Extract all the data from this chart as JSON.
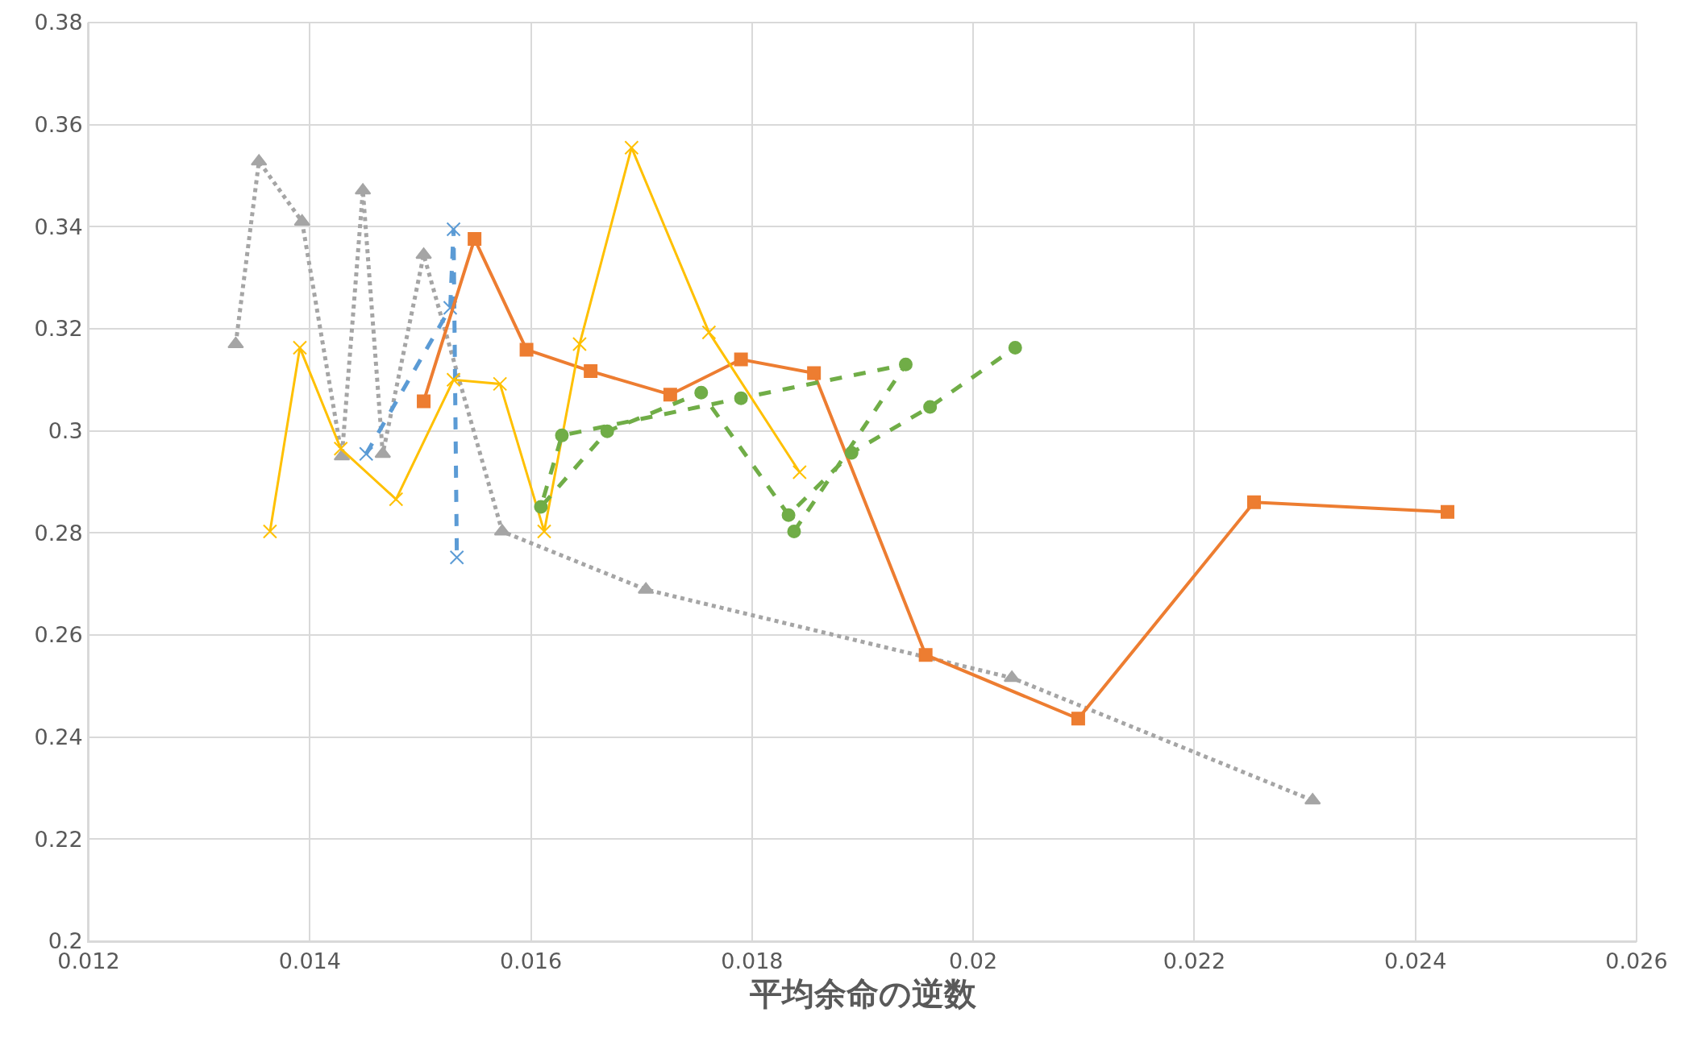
{
  "chart_data": {
    "type": "line",
    "xlabel": "平均余命の逆数",
    "xlim": [
      0.012,
      0.026
    ],
    "xticks": [
      0.012,
      0.014,
      0.016,
      0.018,
      0.02,
      0.022,
      0.024,
      0.026
    ],
    "ylim": [
      0.2,
      0.38
    ],
    "yticks": [
      0.2,
      0.22,
      0.24,
      0.26,
      0.28,
      0.3,
      0.32,
      0.34,
      0.36,
      0.38
    ],
    "grid": true,
    "series": [
      {
        "color": "#a5a5a5",
        "marker": "triangle",
        "line_style": "dotted",
        "x": [
          0.01333,
          0.01354,
          0.01393,
          0.01429,
          0.01448,
          0.01466,
          0.01503,
          0.01574,
          0.01704,
          0.02035,
          0.02307
        ],
        "values": [
          0.317,
          0.3528,
          0.341,
          0.295,
          0.3471,
          0.2955,
          0.3345,
          0.2803,
          0.2689,
          0.2516,
          0.2276
        ]
      },
      {
        "color": "#5b9bd5",
        "marker": "cross",
        "line_style": "dashed",
        "x": [
          0.01451,
          0.01527,
          0.0153,
          0.01533
        ],
        "values": [
          0.2955,
          0.3241,
          0.3395,
          0.2752
        ]
      },
      {
        "color": "#ed7d31",
        "marker": "square",
        "line_style": "solid",
        "x": [
          0.01503,
          0.01549,
          0.01596,
          0.01654,
          0.01726,
          0.0179,
          0.01856,
          0.01957,
          0.02095,
          0.02254,
          0.02429
        ],
        "values": [
          0.3058,
          0.3376,
          0.3159,
          0.3117,
          0.3071,
          0.314,
          0.3113,
          0.2561,
          0.2436,
          0.286,
          0.2841
        ]
      },
      {
        "color": "#ffc000",
        "marker": "cross",
        "line_style": "solid",
        "x": [
          0.01364,
          0.01391,
          0.01428,
          0.01478,
          0.0153,
          0.01572,
          0.01612,
          0.01644,
          0.01691,
          0.01761,
          0.01843
        ],
        "values": [
          0.2803,
          0.3163,
          0.2965,
          0.2866,
          0.31,
          0.3092,
          0.2803,
          0.317,
          0.3555,
          0.3193,
          0.2919
        ]
      },
      {
        "color": "#70ad47",
        "marker": "circle",
        "line_style": "dashed",
        "x": [
          0.01838,
          0.01939,
          0.0179,
          0.01628,
          0.01609,
          0.01669,
          0.01754,
          0.01833,
          0.0189,
          0.01961,
          0.02038
        ],
        "values": [
          0.2803,
          0.313,
          0.3064,
          0.2991,
          0.2851,
          0.2999,
          0.3075,
          0.2835,
          0.2957,
          0.3047,
          0.3163
        ]
      }
    ]
  }
}
